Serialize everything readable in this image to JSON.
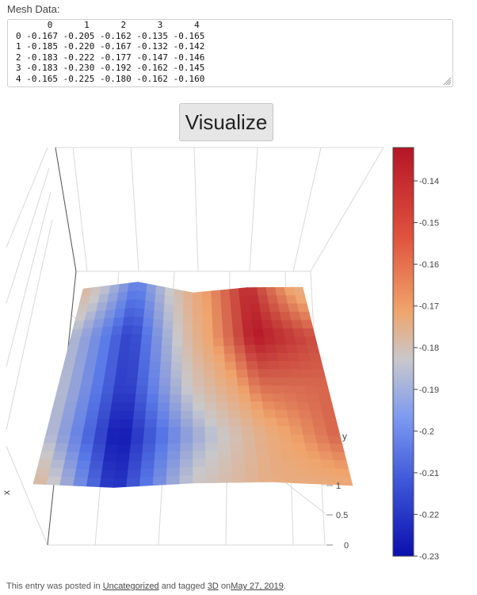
{
  "form": {
    "label": "Mesh Data:",
    "mesh_text": "      0      1      2      3      4\n0 -0.167 -0.205 -0.162 -0.135 -0.165\n1 -0.185 -0.220 -0.167 -0.132 -0.142\n2 -0.183 -0.222 -0.177 -0.147 -0.146\n3 -0.183 -0.230 -0.192 -0.162 -0.145\n4 -0.165 -0.225 -0.180 -0.162 -0.160",
    "button_label": "Visualize"
  },
  "plot": {
    "axis_y_title": "y",
    "axis_x_title": "x",
    "y_ticks": [
      "0",
      "0.5",
      "1"
    ]
  },
  "chart_data": {
    "type": "heatmap",
    "subtype": "3d-surface",
    "colorscale": [
      "#0b0fae",
      "#5b7be8",
      "#c8c8cc",
      "#f0a46c",
      "#b51526"
    ],
    "z": [
      [
        -0.167,
        -0.205,
        -0.162,
        -0.135,
        -0.165
      ],
      [
        -0.185,
        -0.22,
        -0.167,
        -0.132,
        -0.142
      ],
      [
        -0.183,
        -0.222,
        -0.177,
        -0.147,
        -0.146
      ],
      [
        -0.183,
        -0.23,
        -0.192,
        -0.162,
        -0.145
      ],
      [
        -0.165,
        -0.225,
        -0.18,
        -0.162,
        -0.16
      ]
    ],
    "colorbar": {
      "ticks": [
        "-0.14",
        "-0.15",
        "-0.16",
        "-0.17",
        "-0.18",
        "-0.19",
        "-0.2",
        "-0.21",
        "-0.22",
        "-0.23"
      ],
      "range": [
        -0.23,
        -0.132
      ]
    }
  },
  "footer": {
    "prefix": "This entry was posted in",
    "category": "Uncategorized",
    "middle": "and tagged",
    "tag": "3D",
    "on": "on",
    "date": "May 27, 2019",
    "end": "."
  }
}
